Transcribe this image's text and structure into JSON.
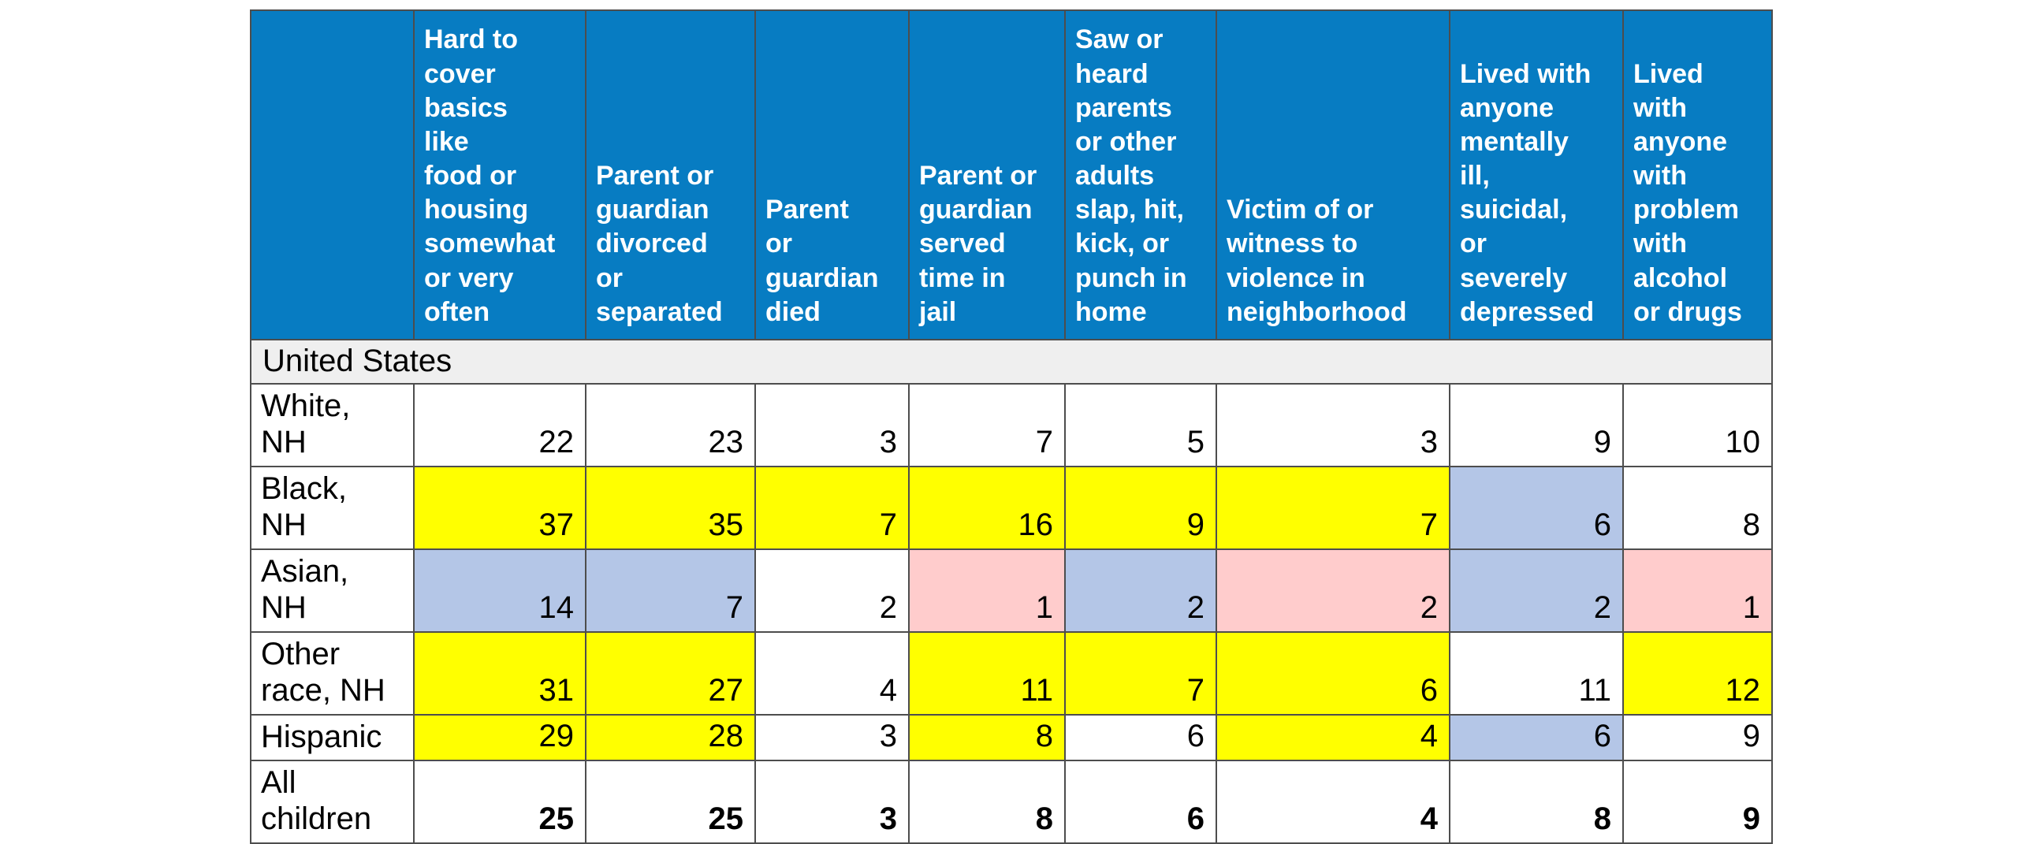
{
  "colors": {
    "header_bg": "#077cc2",
    "header_text": "#ffffff",
    "section_bg": "#efefef",
    "highlight_yellow": "#ffff00",
    "highlight_blue": "#b4c6e7",
    "highlight_pink": "#ffcccc",
    "cell_white": "#ffffff",
    "border": "#4d4d4d",
    "text": "#000000"
  },
  "chart_data": {
    "type": "table",
    "section": "United States",
    "columns": [
      "Hard to cover basics like food or housing somewhat or very often",
      "Parent or guardian divorced or separated",
      "Parent or guardian died",
      "Parent or guardian served time in jail",
      "Saw or heard parents or other adults slap, hit, kick, or punch in home",
      "Victim of or witness to violence in neighborhood",
      "Lived with anyone mentally ill, suicidal, or severely depressed",
      "Lived with anyone with problem with alcohol or drugs"
    ],
    "rows": [
      {
        "label": "White, NH",
        "bold": false,
        "values": [
          22,
          23,
          3,
          7,
          5,
          3,
          9,
          10
        ],
        "cell_colors": [
          "white",
          "white",
          "white",
          "white",
          "white",
          "white",
          "white",
          "white"
        ]
      },
      {
        "label": "Black, NH",
        "bold": false,
        "values": [
          37,
          35,
          7,
          16,
          9,
          7,
          6,
          8
        ],
        "cell_colors": [
          "yellow",
          "yellow",
          "yellow",
          "yellow",
          "yellow",
          "yellow",
          "blue",
          "white"
        ]
      },
      {
        "label": "Asian, NH",
        "bold": false,
        "values": [
          14,
          7,
          2,
          1,
          2,
          2,
          2,
          1
        ],
        "cell_colors": [
          "blue",
          "blue",
          "white",
          "pink",
          "blue",
          "pink",
          "blue",
          "pink"
        ]
      },
      {
        "label": "Other race, NH",
        "bold": false,
        "values": [
          31,
          27,
          4,
          11,
          7,
          6,
          11,
          12
        ],
        "cell_colors": [
          "yellow",
          "yellow",
          "white",
          "yellow",
          "yellow",
          "yellow",
          "white",
          "yellow"
        ]
      },
      {
        "label": "Hispanic",
        "bold": false,
        "values": [
          29,
          28,
          3,
          8,
          6,
          4,
          6,
          9
        ],
        "cell_colors": [
          "yellow",
          "yellow",
          "white",
          "yellow",
          "white",
          "yellow",
          "blue",
          "white"
        ]
      },
      {
        "label": "All children",
        "bold": true,
        "values": [
          25,
          25,
          3,
          8,
          6,
          4,
          8,
          9
        ],
        "cell_colors": [
          "white",
          "white",
          "white",
          "white",
          "white",
          "white",
          "white",
          "white"
        ]
      }
    ]
  },
  "display": {
    "header_lines": [
      "Hard to\ncover\nbasics\nlike\nfood or\nhousing\nsomewhat\nor very\noften",
      "Parent or\nguardian\ndivorced\nor\nseparated",
      "Parent\nor\nguardian\ndied",
      "Parent or\nguardian\nserved\ntime in\njail",
      "Saw or\nheard\nparents\nor other\nadults\nslap, hit,\nkick, or\npunch in\nhome",
      "Victim of or\nwitness to\nviolence in\nneighborhood",
      "Lived with\nanyone\nmentally\nill,\nsuicidal,\nor\nseverely\ndepressed",
      "Lived\nwith\nanyone\nwith\nproblem\nwith\nalcohol\nor drugs"
    ],
    "row_label_lines": [
      "White,\nNH",
      "Black,\nNH",
      "Asian,\nNH",
      "Other\nrace, NH",
      "Hispanic",
      "All\nchildren"
    ]
  }
}
